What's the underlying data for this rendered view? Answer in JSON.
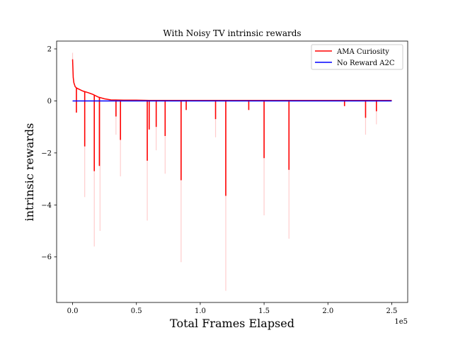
{
  "chart_data": {
    "type": "line",
    "title": "With Noisy TV  intrinsic rewards",
    "xlabel": "Total Frames Elapsed",
    "ylabel": "intrinsic rewards",
    "x_offset_text": "1e5",
    "xlim": [
      -12500,
      262500
    ],
    "ylim": [
      -7.75,
      2.3
    ],
    "x_ticks": [
      0,
      50000,
      100000,
      150000,
      200000,
      250000
    ],
    "x_tick_labels": [
      "0.0",
      "0.5",
      "1.0",
      "1.5",
      "2.0",
      "2.5"
    ],
    "y_ticks": [
      2,
      0,
      -2,
      -4,
      -6
    ],
    "y_tick_labels": [
      "2",
      "0",
      "−2",
      "−4",
      "−6"
    ],
    "grid": false,
    "legend_position": "top-right",
    "series": [
      {
        "name": "AMA Curiosity",
        "color": "#ff0000",
        "baseline": {
          "x": [
            0,
            500,
            1000,
            2000,
            3000,
            5000,
            8000,
            12000,
            16000,
            20000,
            25000,
            30000,
            40000,
            50000,
            60000,
            80000,
            100000,
            150000,
            200000,
            250000
          ],
          "y": [
            1.6,
            0.9,
            0.7,
            0.55,
            0.5,
            0.45,
            0.38,
            0.32,
            0.25,
            0.15,
            0.08,
            0.04,
            0.03,
            0.03,
            0.02,
            0.02,
            0.02,
            0.02,
            0.02,
            0.02
          ]
        },
        "spikes": [
          {
            "x": 3000,
            "y": -0.45
          },
          {
            "x": 9500,
            "y": -1.75
          },
          {
            "x": 17000,
            "y": -2.7
          },
          {
            "x": 21000,
            "y": -2.5
          },
          {
            "x": 34000,
            "y": -0.6
          },
          {
            "x": 37500,
            "y": -1.5
          },
          {
            "x": 58500,
            "y": -2.3
          },
          {
            "x": 60000,
            "y": -1.1
          },
          {
            "x": 65500,
            "y": -1.0
          },
          {
            "x": 72500,
            "y": -1.35
          },
          {
            "x": 85000,
            "y": -3.05
          },
          {
            "x": 89000,
            "y": -0.35
          },
          {
            "x": 112000,
            "y": -0.7
          },
          {
            "x": 120000,
            "y": -3.65
          },
          {
            "x": 138000,
            "y": -0.35
          },
          {
            "x": 150000,
            "y": -2.2
          },
          {
            "x": 169500,
            "y": -2.65
          },
          {
            "x": 213000,
            "y": -0.2
          },
          {
            "x": 229500,
            "y": -0.65
          },
          {
            "x": 238000,
            "y": -0.4
          }
        ]
      },
      {
        "name": "No Reward A2C",
        "color": "#0000ff",
        "x": [
          0,
          250000
        ],
        "y": [
          0.0,
          0.0
        ]
      }
    ],
    "band": {
      "color": "#ff0000",
      "opacity": 0.2,
      "upper_peak": {
        "x": 0,
        "y": 1.85
      },
      "extremes": [
        {
          "x": 9500,
          "y": -3.7
        },
        {
          "x": 17000,
          "y": -5.6
        },
        {
          "x": 21500,
          "y": -5.0
        },
        {
          "x": 34000,
          "y": -1.3
        },
        {
          "x": 37500,
          "y": -2.9
        },
        {
          "x": 58500,
          "y": -4.6
        },
        {
          "x": 65500,
          "y": -1.9
        },
        {
          "x": 72500,
          "y": -2.8
        },
        {
          "x": 85000,
          "y": -6.2
        },
        {
          "x": 112000,
          "y": -1.4
        },
        {
          "x": 120000,
          "y": -7.3
        },
        {
          "x": 150000,
          "y": -4.4
        },
        {
          "x": 169500,
          "y": -5.3
        },
        {
          "x": 229500,
          "y": -1.3
        },
        {
          "x": 238000,
          "y": -0.9
        }
      ]
    }
  }
}
